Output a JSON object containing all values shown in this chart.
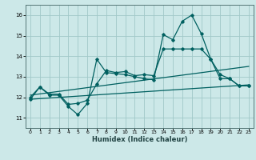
{
  "xlabel": "Humidex (Indice chaleur)",
  "bg_color": "#cce8e8",
  "grid_color": "#a0c8c8",
  "line_color": "#006060",
  "spine_color": "#557777",
  "xlim": [
    -0.5,
    23.5
  ],
  "ylim": [
    10.5,
    16.5
  ],
  "yticks": [
    11,
    12,
    13,
    14,
    15,
    16
  ],
  "xticks": [
    0,
    1,
    2,
    3,
    4,
    5,
    6,
    7,
    8,
    9,
    10,
    11,
    12,
    13,
    14,
    15,
    16,
    17,
    18,
    19,
    20,
    21,
    22,
    23
  ],
  "line1_x": [
    0,
    1,
    2,
    3,
    4,
    5,
    6,
    7,
    8,
    9,
    10,
    11,
    12,
    13,
    14,
    15,
    16,
    17,
    18,
    19,
    20,
    21,
    22,
    23
  ],
  "line1_y": [
    11.9,
    12.5,
    12.1,
    12.1,
    11.55,
    11.15,
    11.7,
    13.85,
    13.2,
    13.15,
    13.1,
    13.0,
    12.9,
    12.85,
    15.05,
    14.8,
    15.7,
    16.0,
    15.1,
    13.85,
    12.9,
    12.9,
    12.55,
    12.55
  ],
  "line2_x": [
    0,
    1,
    2,
    3,
    4,
    5,
    6,
    7,
    8,
    9,
    10,
    11,
    12,
    13,
    14,
    15,
    16,
    17,
    18,
    19,
    20,
    21,
    22,
    23
  ],
  "line2_y": [
    12.0,
    12.5,
    12.15,
    12.15,
    11.65,
    11.7,
    11.85,
    12.65,
    13.3,
    13.2,
    13.25,
    13.05,
    13.1,
    13.05,
    14.35,
    14.35,
    14.35,
    14.35,
    14.35,
    13.85,
    13.1,
    12.9,
    12.55,
    12.55
  ],
  "line3_x": [
    0,
    23
  ],
  "line3_y": [
    12.1,
    13.5
  ],
  "line4_x": [
    0,
    23
  ],
  "line4_y": [
    11.9,
    12.6
  ]
}
